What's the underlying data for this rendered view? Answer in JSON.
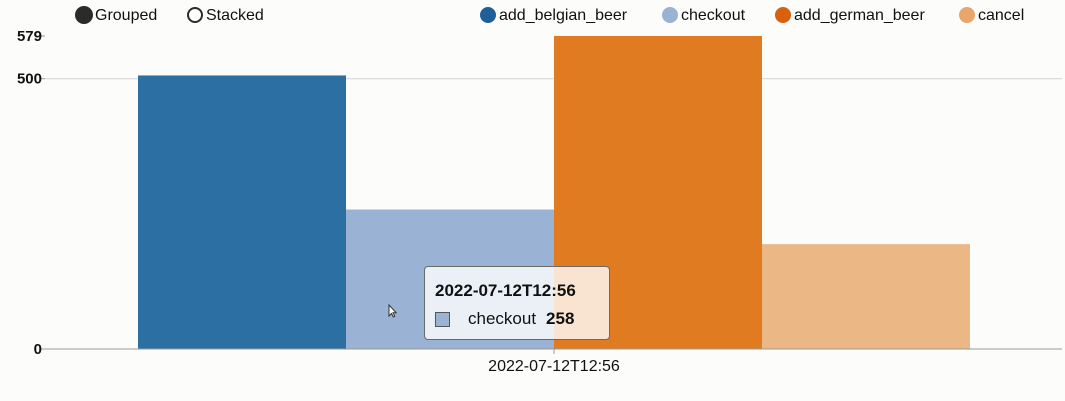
{
  "controls": {
    "grouped_label": "Grouped",
    "stacked_label": "Stacked",
    "selected": "Grouped"
  },
  "chart_data": {
    "type": "bar",
    "mode": "grouped",
    "categories": [
      "2022-07-12T12:56"
    ],
    "series": [
      {
        "name": "add_belgian_beer",
        "values": [
          506
        ],
        "color": "#2b6fa3"
      },
      {
        "name": "checkout",
        "values": [
          258
        ],
        "color": "#9ab2d3"
      },
      {
        "name": "add_german_beer",
        "values": [
          579
        ],
        "color": "#e07b22"
      },
      {
        "name": "cancel",
        "values": [
          194
        ],
        "color": "#ebb784"
      }
    ],
    "ylim": [
      0,
      579
    ],
    "yticks": [
      "0",
      "500",
      "579"
    ],
    "grid": true,
    "legend_position": "top-right",
    "legend_marker_colors": [
      "#1f5f99",
      "#9ab2d3",
      "#d9600c",
      "#e8a66a"
    ]
  },
  "tooltip": {
    "title": "2022-07-12T12:56",
    "series": "checkout",
    "value": "258",
    "swatch_color": "#9ab2d3"
  }
}
